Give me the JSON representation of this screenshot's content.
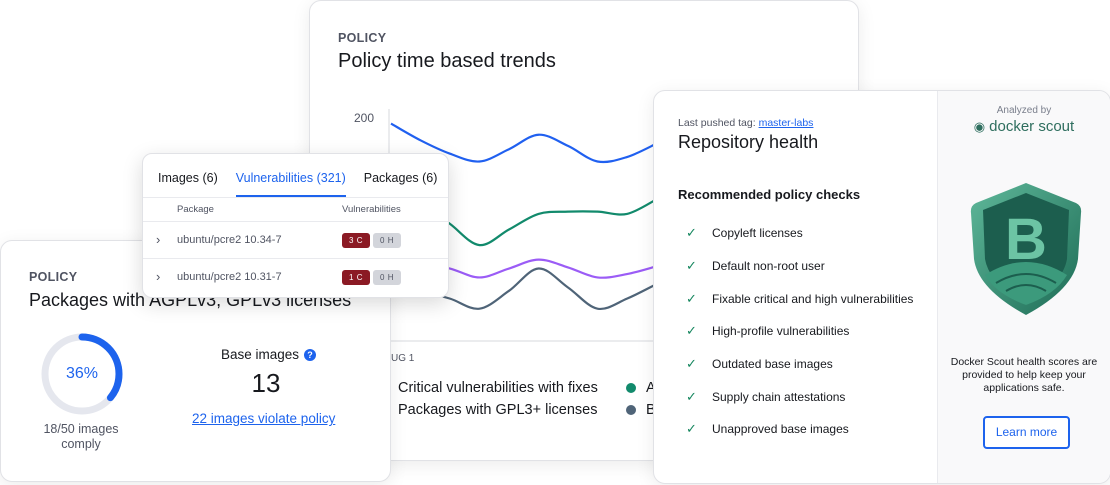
{
  "chart_card": {
    "eyebrow": "POLICY",
    "title": "Policy time based trends",
    "chart_data": {
      "type": "line",
      "title": "Policy time based trends",
      "y_tick_labels": [
        "200"
      ],
      "x_tick_labels": [
        "UG 1"
      ],
      "ylim": [
        0,
        200
      ],
      "x": [
        0,
        1,
        2,
        3,
        4,
        5,
        6,
        7,
        8,
        9
      ],
      "series": [
        {
          "color": "#2060f0",
          "values": [
            195,
            180,
            168,
            161,
            172,
            185,
            175,
            161,
            165,
            177
          ]
        },
        {
          "color": "#128a6c",
          "values": [
            140,
            125,
            105,
            86,
            100,
            114,
            116,
            116,
            114,
            127
          ]
        },
        {
          "color": "#9b5cf6",
          "values": [
            75,
            70,
            65,
            57,
            65,
            73,
            66,
            57,
            60,
            67
          ]
        },
        {
          "color": "#4f6478",
          "values": [
            50,
            45,
            38,
            29,
            45,
            65,
            48,
            29,
            38,
            51
          ]
        }
      ],
      "legend": [
        {
          "label": "Critical vulnerabilities with fixes",
          "color": "#128a6c"
        },
        {
          "label": "Packages with GPL3+ licenses",
          "color": "#4f6478"
        }
      ],
      "legend_right": [
        {
          "label": "A",
          "color": "#128a6c"
        },
        {
          "label": "B",
          "color": "#4f6478"
        }
      ]
    }
  },
  "license_card": {
    "eyebrow": "POLICY",
    "title": "Packages with AGPLv3, GPLv3 licenses",
    "percent_label": "36%",
    "percent": 36,
    "comply_line1": "18/50 images",
    "comply_line2": "comply",
    "base_images_label": "Base images",
    "help_icon": "?",
    "base_images_count": "13",
    "violate_link": "22 images violate policy"
  },
  "vuln_popup": {
    "tabs": [
      {
        "label": "Images (6)",
        "active": false
      },
      {
        "label": "Vulnerabilities (321)",
        "active": true
      },
      {
        "label": "Packages (6)",
        "active": false
      }
    ],
    "columns": [
      "Package",
      "Vulnerabilities"
    ],
    "rows": [
      {
        "package": "ubuntu/pcre2 10.34-7",
        "critical": "3 C",
        "high": "0 H"
      },
      {
        "package": "ubuntu/pcre2 10.31-7",
        "critical": "1 C",
        "high": "0 H"
      }
    ]
  },
  "repo_card": {
    "tag_prefix": "Last pushed tag:",
    "tag": "master-labs",
    "title": "Repository health",
    "subtitle": "Recommended policy checks",
    "checks": [
      "Copyleft licenses",
      "Default non-root user",
      "Fixable critical and high vulnerabilities",
      "High-profile vulnerabilities",
      "Outdated base images",
      "Supply chain attestations",
      "Unapproved base images"
    ],
    "analyzed_by": "Analyzed by",
    "logo_text": "docker scout",
    "grade": "B",
    "note": "Docker Scout health scores are provided to help keep your applications safe.",
    "learn_more": "Learn more"
  }
}
